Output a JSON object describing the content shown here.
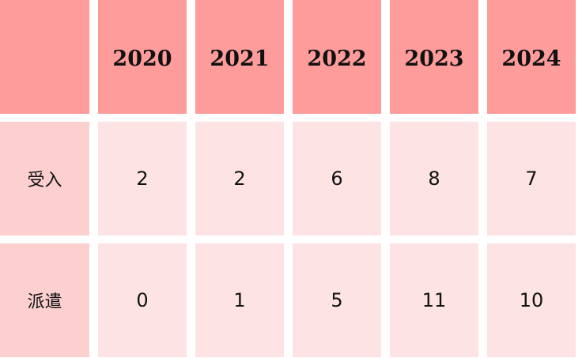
{
  "table": {
    "header": [
      "",
      "2020",
      "2021",
      "2022",
      "2023",
      "2024"
    ],
    "rows": [
      {
        "label": "受入",
        "values": [
          "2",
          "2",
          "6",
          "8",
          "7"
        ]
      },
      {
        "label": "派遣",
        "values": [
          "0",
          "1",
          "5",
          "11",
          "10"
        ]
      }
    ]
  },
  "colors": {
    "header": "#fe9b9b",
    "row_label": "#fdd0d0",
    "cell": "#fde3e3"
  }
}
